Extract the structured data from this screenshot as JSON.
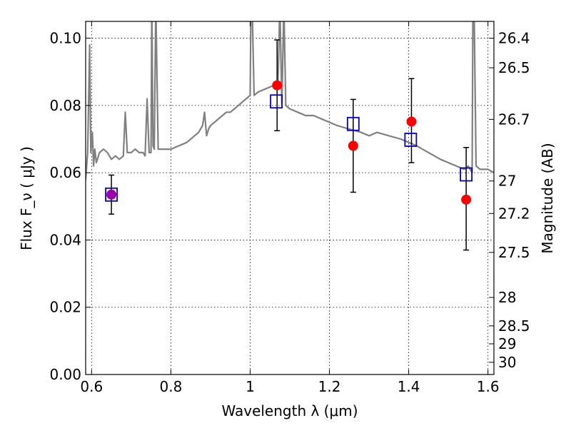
{
  "chart_data": {
    "type": "scatter",
    "xlabel": "Wavelength  λ (μm)",
    "ylabel": "Flux  F_ν  ( μJy )",
    "y2label": "Magnitude (AB)",
    "xlim": [
      0.585,
      1.615
    ],
    "ylim": [
      0.0,
      0.105
    ],
    "grid": true,
    "x_ticks": [
      0.6,
      0.8,
      1.0,
      1.2,
      1.4,
      1.6
    ],
    "x_tick_labels": [
      "0.6",
      "0.8",
      "1",
      "1.2",
      "1.4",
      "1.6"
    ],
    "y_ticks": [
      0.0,
      0.02,
      0.04,
      0.06,
      0.08,
      0.1
    ],
    "y_tick_labels": [
      "0.00",
      "0.02",
      "0.04",
      "0.06",
      "0.08",
      "0.10"
    ],
    "y2_ticks": [
      26.4,
      26.5,
      26.7,
      27.0,
      27.2,
      27.5,
      28.0,
      28.5,
      29.0,
      30.0
    ],
    "y2_tick_labels": [
      "26.4",
      "26.5",
      "26.7",
      "27",
      "27.2",
      "27.5",
      "28",
      "28.5",
      "29",
      "30"
    ],
    "colors": {
      "spectrum": "#808080",
      "observed": "#ff0000",
      "model": "#0000cc",
      "overlap": "#9900aa",
      "errorbar": "#000000"
    },
    "series": [
      {
        "kind": "line",
        "x": [
          0.585,
          0.59,
          0.595,
          0.598,
          0.602,
          0.605,
          0.608,
          0.612,
          0.62,
          0.63,
          0.64,
          0.65,
          0.66,
          0.67,
          0.68,
          0.685,
          0.69,
          0.7,
          0.71,
          0.72,
          0.73,
          0.735,
          0.74,
          0.745,
          0.75,
          0.752,
          0.755,
          0.758,
          0.762,
          0.768,
          0.78,
          0.8,
          0.82,
          0.84,
          0.86,
          0.87,
          0.88,
          0.885,
          0.89,
          0.895,
          0.9,
          0.91,
          0.92,
          0.93,
          0.94,
          0.95,
          0.96,
          0.97,
          0.98,
          0.99,
          1.0,
          1.002,
          1.005,
          1.01,
          1.02,
          1.04,
          1.06,
          1.07,
          1.075,
          1.08,
          1.085,
          1.09,
          1.1,
          1.12,
          1.14,
          1.16,
          1.18,
          1.2,
          1.22,
          1.25,
          1.28,
          1.3,
          1.32,
          1.35,
          1.38,
          1.4,
          1.42,
          1.45,
          1.48,
          1.5,
          1.52,
          1.54,
          1.55,
          1.56,
          1.562,
          1.565,
          1.57,
          1.58,
          1.6,
          1.615
        ],
        "y": [
          0.058,
          0.066,
          0.098,
          0.066,
          0.072,
          0.062,
          0.067,
          0.063,
          0.066,
          0.067,
          0.066,
          0.064,
          0.065,
          0.064,
          0.065,
          0.078,
          0.066,
          0.066,
          0.067,
          0.066,
          0.066,
          0.065,
          0.082,
          0.066,
          0.066,
          0.11,
          0.068,
          0.067,
          0.11,
          0.067,
          0.067,
          0.067,
          0.068,
          0.069,
          0.071,
          0.072,
          0.074,
          0.078,
          0.071,
          0.073,
          0.074,
          0.075,
          0.076,
          0.077,
          0.078,
          0.078,
          0.079,
          0.08,
          0.081,
          0.082,
          0.083,
          0.11,
          0.11,
          0.083,
          0.084,
          0.085,
          0.086,
          0.085,
          0.11,
          0.08,
          0.11,
          0.08,
          0.079,
          0.078,
          0.077,
          0.077,
          0.076,
          0.075,
          0.074,
          0.073,
          0.072,
          0.071,
          0.072,
          0.071,
          0.07,
          0.069,
          0.068,
          0.066,
          0.064,
          0.063,
          0.062,
          0.061,
          0.062,
          0.06,
          0.11,
          0.11,
          0.062,
          0.061,
          0.061,
          0.06
        ]
      },
      {
        "kind": "points",
        "marker": "circle",
        "x": [
          0.65,
          1.068,
          1.26,
          1.407,
          1.545
        ],
        "y": [
          0.0535,
          0.086,
          0.068,
          0.0752,
          0.052
        ],
        "yerr_low": [
          0.0058,
          0.0135,
          0.0138,
          0.0122,
          0.015
        ],
        "yerr_high": [
          0.0058,
          0.0135,
          0.0138,
          0.0128,
          0.0155
        ]
      },
      {
        "kind": "points",
        "marker": "square",
        "x": [
          0.65,
          1.066,
          1.26,
          1.405,
          1.545
        ],
        "y": [
          0.0535,
          0.0812,
          0.0745,
          0.0698,
          0.0595
        ]
      }
    ]
  }
}
